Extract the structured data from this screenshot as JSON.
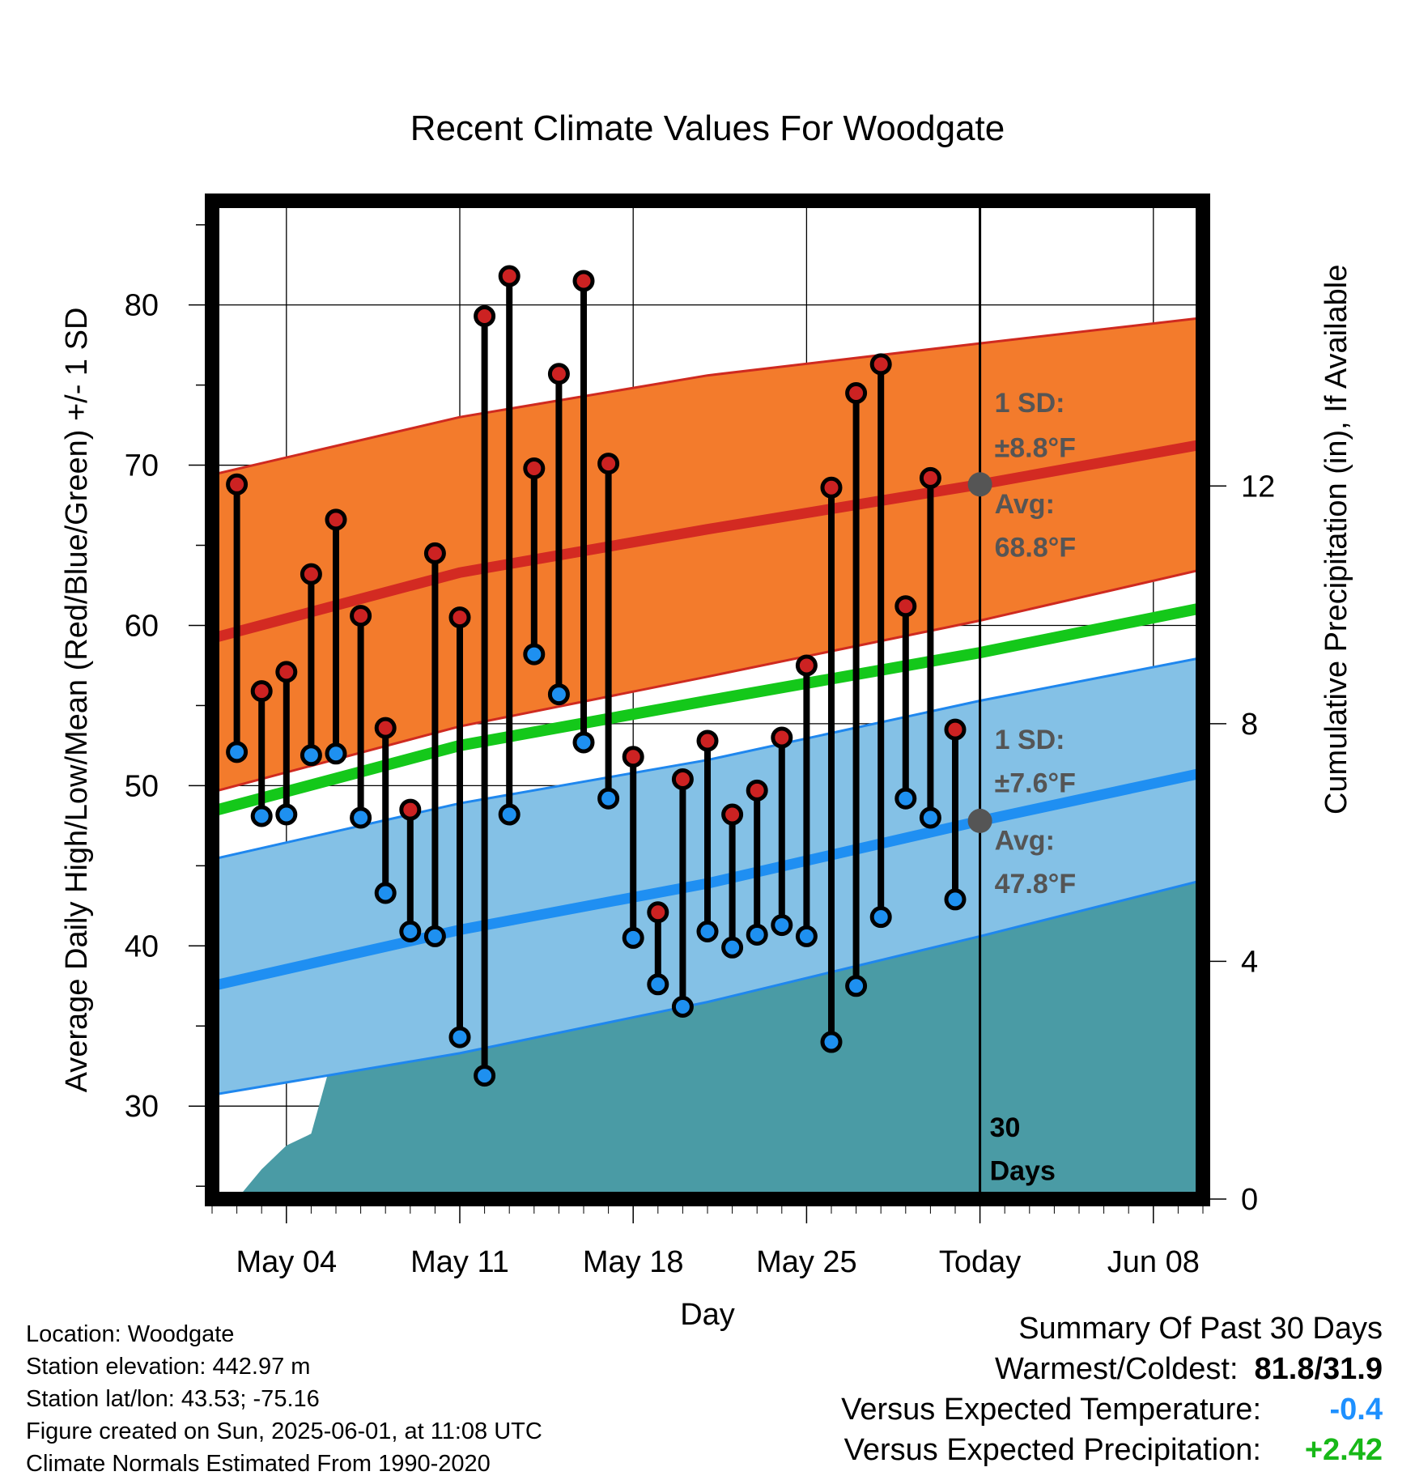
{
  "chart_data": {
    "type": "line",
    "title": "Recent Climate Values For Woodgate",
    "xlabel": "Day",
    "ylabel": "Average Daily High/Low/Mean (Red/Blue/Green) +/- 1 SD",
    "y2label": "Cumulative Precipitation (in), If Available",
    "x_start": "2025-05-01",
    "xlim": [
      "2025-05-01",
      "2025-06-10"
    ],
    "ylim": [
      24.2,
      86.5
    ],
    "y2lim": [
      0,
      16.8
    ],
    "x_ticks": [
      "May 04",
      "May 11",
      "May 18",
      "May 25",
      "Today",
      "Jun 08"
    ],
    "x_tick_dates": [
      "2025-05-04",
      "2025-05-11",
      "2025-05-18",
      "2025-05-25",
      "2025-06-01",
      "2025-06-08"
    ],
    "y_ticks": [
      30,
      40,
      50,
      60,
      70,
      80
    ],
    "y2_ticks": [
      0,
      4,
      8,
      12
    ],
    "grid": true,
    "today": "2025-06-01",
    "today_label_number": "30",
    "today_label_word": "Days",
    "normal_high": {
      "x": [
        "2025-05-01",
        "2025-05-11",
        "2025-05-21",
        "2025-06-01",
        "2025-06-10"
      ],
      "avg": [
        59.2,
        63.3,
        66.0,
        68.8,
        71.3
      ],
      "upper": [
        69.4,
        73.0,
        75.6,
        77.6,
        79.2
      ],
      "lower": [
        49.6,
        53.7,
        56.8,
        60.3,
        63.5
      ]
    },
    "normal_low": {
      "x": [
        "2025-05-01",
        "2025-05-11",
        "2025-05-21",
        "2025-06-01",
        "2025-06-10"
      ],
      "avg": [
        37.5,
        41.0,
        43.9,
        47.8,
        50.8
      ],
      "upper": [
        45.4,
        48.9,
        51.6,
        55.3,
        58.0
      ],
      "lower": [
        30.7,
        33.3,
        36.5,
        40.6,
        44.1
      ]
    },
    "normal_mean": {
      "x": [
        "2025-05-01",
        "2025-05-11",
        "2025-05-21",
        "2025-06-01",
        "2025-06-10"
      ],
      "values": [
        48.4,
        52.5,
        55.3,
        58.3,
        61.1
      ]
    },
    "annotations": {
      "high_sd_label": "1 SD:",
      "high_sd_value": "±8.8°F",
      "high_avg_label": "Avg:",
      "high_avg_value": "68.8°F",
      "low_sd_label": "1 SD:",
      "low_sd_value": "±7.6°F",
      "low_avg_label": "Avg:",
      "low_avg_value": "47.8°F"
    },
    "series": [
      {
        "name": "High",
        "x": [
          "2025-05-02",
          "2025-05-03",
          "2025-05-04",
          "2025-05-05",
          "2025-05-06",
          "2025-05-07",
          "2025-05-08",
          "2025-05-09",
          "2025-05-10",
          "2025-05-11",
          "2025-05-12",
          "2025-05-13",
          "2025-05-14",
          "2025-05-15",
          "2025-05-16",
          "2025-05-17",
          "2025-05-18",
          "2025-05-19",
          "2025-05-20",
          "2025-05-21",
          "2025-05-22",
          "2025-05-23",
          "2025-05-24",
          "2025-05-25",
          "2025-05-26",
          "2025-05-27",
          "2025-05-28",
          "2025-05-29",
          "2025-05-30",
          "2025-05-31"
        ],
        "values": [
          68.8,
          55.9,
          57.1,
          63.2,
          66.6,
          60.6,
          53.6,
          48.5,
          64.5,
          60.5,
          79.3,
          81.8,
          69.8,
          75.7,
          81.5,
          70.1,
          51.8,
          42.1,
          50.4,
          52.8,
          48.2,
          49.7,
          53.0,
          57.5,
          68.6,
          74.5,
          76.3,
          61.2,
          69.2,
          53.5
        ]
      },
      {
        "name": "Low",
        "x": [
          "2025-05-02",
          "2025-05-03",
          "2025-05-04",
          "2025-05-05",
          "2025-05-06",
          "2025-05-07",
          "2025-05-08",
          "2025-05-09",
          "2025-05-10",
          "2025-05-11",
          "2025-05-12",
          "2025-05-13",
          "2025-05-14",
          "2025-05-15",
          "2025-05-16",
          "2025-05-17",
          "2025-05-18",
          "2025-05-19",
          "2025-05-20",
          "2025-05-21",
          "2025-05-22",
          "2025-05-23",
          "2025-05-24",
          "2025-05-25",
          "2025-05-26",
          "2025-05-27",
          "2025-05-28",
          "2025-05-29",
          "2025-05-30",
          "2025-05-31"
        ],
        "values": [
          52.1,
          48.1,
          48.2,
          51.9,
          52.0,
          48.0,
          43.3,
          40.9,
          40.6,
          34.3,
          31.9,
          48.2,
          58.2,
          55.7,
          52.7,
          49.2,
          40.5,
          37.6,
          36.2,
          40.9,
          39.9,
          40.7,
          41.3,
          40.6,
          34.0,
          37.5,
          41.8,
          49.2,
          48.0,
          42.9
        ]
      },
      {
        "name": "Cumulative Precipitation",
        "x": [
          "2025-05-01",
          "2025-05-02",
          "2025-05-03",
          "2025-05-04",
          "2025-05-05",
          "2025-05-06",
          "2025-05-07",
          "2025-05-08",
          "2025-05-09",
          "2025-05-10",
          "2025-05-11",
          "2025-05-12",
          "2025-05-13",
          "2025-05-14",
          "2025-05-15",
          "2025-05-16",
          "2025-05-17",
          "2025-05-18",
          "2025-05-19",
          "2025-05-20",
          "2025-05-21",
          "2025-05-22",
          "2025-05-23",
          "2025-05-24",
          "2025-05-25",
          "2025-05-26",
          "2025-05-27",
          "2025-05-28",
          "2025-05-29",
          "2025-05-30",
          "2025-05-31",
          "2025-06-01",
          "2025-06-10"
        ],
        "values": [
          0.0,
          0.0,
          0.5,
          0.9,
          1.1,
          2.6,
          2.9,
          2.9,
          3.3,
          3.35,
          3.35,
          3.35,
          3.35,
          3.35,
          3.35,
          3.35,
          4.6,
          5.1,
          5.1,
          5.2,
          5.3,
          5.35,
          5.6,
          5.8,
          5.9,
          6.0,
          6.0,
          6.05,
          6.1,
          6.1,
          6.35,
          6.35,
          6.35
        ]
      }
    ],
    "colors": {
      "high_band": "#f37b2c",
      "high_band_edge": "#cf2a20",
      "high_avg": "#d32a22",
      "low_band": "#84c1e6",
      "low_band_edge": "#1f87ee",
      "low_avg": "#1f8ff2",
      "mean": "#14c81a",
      "precip": "#4a9ba5",
      "high_marker": "#cc2222",
      "low_marker": "#1e90f0",
      "annotation": "#555555",
      "dep_temp": "#1e90ff",
      "dep_precip": "#18b818"
    }
  },
  "footer": {
    "location": "Location: Woodgate",
    "elevation": "Station elevation: 442.97 m",
    "latlon": "Station lat/lon: 43.53; -75.16",
    "created": "Figure created on Sun, 2025-06-01, at 11:08 UTC",
    "normals": "Climate Normals Estimated From 1990-2020"
  },
  "summary": {
    "title": "Summary Of Past 30 Days",
    "warm_cold_label": "Warmest/Coldest:",
    "warm_cold_value": "81.8/31.9",
    "temp_label": "Versus Expected Temperature:",
    "temp_value": "-0.4",
    "precip_label": "Versus Expected Precipitation:",
    "precip_value": "+2.42"
  }
}
